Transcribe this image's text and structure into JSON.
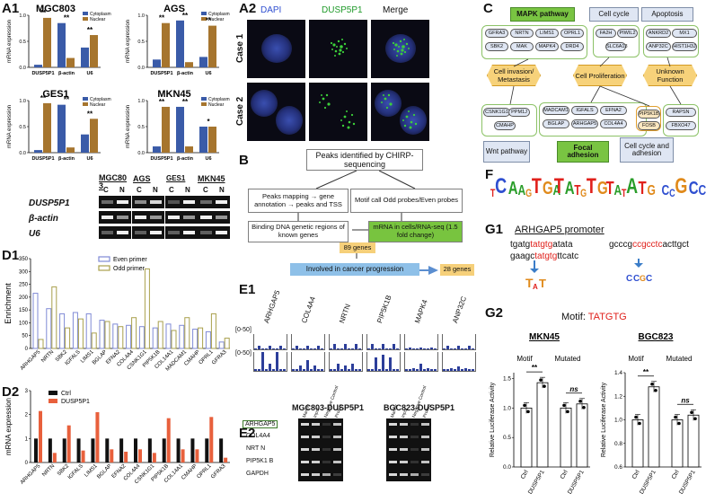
{
  "panels": {
    "A1": "A1",
    "A2": "A2",
    "B": "B",
    "C": "C",
    "D1": "D1",
    "D2": "D2",
    "E1": "E1",
    "E2": "E2",
    "F": "F",
    "G1": "G1",
    "G2": "G2"
  },
  "a1": {
    "legend": [
      "Cytoplasm",
      "Nuclear"
    ],
    "ylabel": "mRNA expression",
    "charts": [
      {
        "title": "MGC803",
        "genes": [
          "DUSP5P1",
          "β-actin",
          "U6"
        ],
        "cyto": [
          0.05,
          0.85,
          0.38
        ],
        "nuc": [
          0.95,
          0.18,
          0.62
        ],
        "sig": [
          "**",
          "**",
          "**"
        ],
        "yticks": [
          "0.0",
          "0.5",
          "1.0"
        ]
      },
      {
        "title": "AGS",
        "genes": [
          "DUSP5P1",
          "β-actin",
          "U6"
        ],
        "cyto": [
          0.15,
          0.9,
          0.2
        ],
        "nuc": [
          0.85,
          0.1,
          0.8
        ],
        "sig": [
          "**",
          "**",
          "**"
        ],
        "yticks": [
          "0.0",
          "0.5",
          "1.0"
        ]
      },
      {
        "title": "GES1",
        "genes": [
          "DUSP5P1",
          "β-actin",
          "U6"
        ],
        "cyto": [
          0.05,
          0.92,
          0.35
        ],
        "nuc": [
          0.95,
          0.1,
          0.65
        ],
        "sig": [
          "**",
          "**",
          "**"
        ],
        "yticks": [
          "0.0",
          "0.5",
          "1.0"
        ]
      },
      {
        "title": "MKN45",
        "genes": [
          "DUSP5P1",
          "β-actin",
          "U6"
        ],
        "cyto": [
          0.12,
          0.88,
          0.5
        ],
        "nuc": [
          0.88,
          0.12,
          0.5
        ],
        "sig": [
          "**",
          "**",
          "*"
        ],
        "yticks": [
          "0.0",
          "0.5",
          "1.0"
        ]
      }
    ],
    "gel": {
      "cells": [
        "MGC80 3",
        "AGS",
        "GES1",
        "MKN45"
      ],
      "lanes": [
        "C",
        "N"
      ],
      "rows": [
        "DUSP5P1",
        "β-actin",
        "U6"
      ]
    }
  },
  "a2": {
    "cols": [
      "DAPI",
      "DUSP5P1",
      "Merge"
    ],
    "rows": [
      "Case 1",
      "Case 2"
    ]
  },
  "b": {
    "top": "Peaks identified by CHIRP-sequencing",
    "left1": "Peaks mapping → gene annotation → peaks and TSS",
    "right1": "Motif call Odd probes/Even probes",
    "left2": "Binding DNA genetic regions of known genes",
    "right2": "mRNA in cells/RNA-seq (1.5 fold change)",
    "n1": "89 genes",
    "mid": "Involved in cancer progression",
    "n2": "28 genes"
  },
  "c": {
    "mapk": "MAPK pathway",
    "cellcycle": "Cell cycle",
    "apoptosis": "Apoptosis",
    "mapk_genes": [
      "GFRA3",
      "NRTN",
      "LIMS1",
      "OPRL1",
      "SBK2",
      "MAK",
      "MAPK4",
      "DRD4"
    ],
    "cc_genes": [
      "FA2H",
      "PIWIL2",
      "SLC6A13"
    ],
    "ap_genes": [
      "ANKRD2",
      "MX1",
      "ANP32C",
      "HIST1H3J"
    ],
    "invasion": "Cell invasion/ Metastasis",
    "prolif": "Cell Proliferation",
    "unknown": "Unknown Function",
    "wnt_genes": [
      "CSNK1G1",
      "PPM1J",
      "CMAHP"
    ],
    "focal_genes": [
      "MADCAM1",
      "IGFALS",
      "EFNA2",
      "BGLAP",
      "ARHGAP5",
      "COL4A4"
    ],
    "ccadh_genes": [
      "PIP5K1B",
      "FOSB"
    ],
    "unk_genes": [
      "RAPSN",
      "FBXO47"
    ],
    "wnt": "Wnt pathway",
    "focal": "Focal adhesion",
    "ccadh": "Cell cycle and adhesion"
  },
  "d1": {
    "ylabel": "Enrichment",
    "legend": [
      "Even primer",
      "Odd primer"
    ],
    "genes": [
      "ARHGAP5",
      "NRTN",
      "SBK2",
      "IGFALS",
      "LIMS1",
      "BGLAP",
      "EFNA2",
      "COL4A4",
      "CSNK1G1",
      "PIP5K1B",
      "COL14A1",
      "MADCAM1",
      "CMAHP",
      "OPRL1",
      "GFRA3"
    ],
    "even": [
      215,
      155,
      135,
      140,
      135,
      110,
      95,
      90,
      85,
      80,
      95,
      90,
      75,
      65,
      25
    ],
    "odd": [
      35,
      240,
      80,
      115,
      60,
      105,
      85,
      120,
      310,
      105,
      70,
      120,
      80,
      135,
      40
    ],
    "yticks": [
      "0",
      "50",
      "100",
      "150",
      "200",
      "250",
      "300",
      "350"
    ]
  },
  "d2": {
    "ylabel": "mRNA expression",
    "legend": [
      "Ctrl",
      "DUSP5P1"
    ],
    "genes": [
      "ARHGAP5",
      "NRTN",
      "SBK2",
      "IGFALS",
      "LIMS1",
      "BGLAP",
      "EFNA2",
      "COL4A4",
      "CSNK1G1",
      "PIP5K1B",
      "COL14A1",
      "CMAHP",
      "OPRL1",
      "GFRA3"
    ],
    "ctrl": [
      1,
      1,
      1,
      1,
      1,
      1,
      1,
      1,
      1,
      1,
      1,
      1,
      1,
      1
    ],
    "dusp": [
      2.15,
      0.4,
      1.55,
      0.5,
      2.1,
      0.55,
      0.45,
      0.55,
      0.4,
      1.85,
      0.55,
      0.55,
      1.9,
      0.2
    ],
    "yticks": [
      "0",
      "1",
      "2",
      "3"
    ]
  },
  "e1": {
    "genes": [
      "ARHGAP5",
      "COL4A4",
      "NRTN",
      "PIP5K1B",
      "MAPK4",
      "ANP32C"
    ],
    "range": "[0-50]"
  },
  "e2": {
    "titles": [
      "MGC803-DUSP5P1",
      "BGC823-DUSP5P1"
    ],
    "rows": [
      "ARHGAP5",
      "COL4A4",
      "NRT N",
      "PIP5K1 B",
      "GAPDH"
    ],
    "lanes": [
      "Marker",
      "Input",
      "Negative Control",
      "Probes"
    ]
  },
  "f": {
    "logos": [
      "TCAAGTGA",
      "TATGTG",
      "TATATG",
      "CCGCCTC"
    ]
  },
  "g1": {
    "title": "ARHGAP5 promoter",
    "seq1_pre": "tgatg",
    "seq1_motif": "tatgtg",
    "seq1_post": "atata",
    "seq2_pre": "gaagc",
    "seq2_motif": "tatgtg",
    "seq2_post": "ttcatc",
    "seq3_pre": "gcccg",
    "seq3_motif": "ccgcctc",
    "seq3_post": "acttgct"
  },
  "g2": {
    "motif_label": "Motif:",
    "motif": "TATGTG",
    "charts": [
      {
        "title": "MKN45",
        "groups": [
          "Motif",
          "Mutated"
        ],
        "cats": [
          "Ctrl",
          "DUSP5P1"
        ],
        "motif": [
          1.0,
          1.43
        ],
        "mutated": [
          1.0,
          1.07
        ],
        "sig": [
          "**",
          "ns"
        ],
        "yticks": [
          "0.0",
          "0.5",
          "1.0",
          "1.5"
        ],
        "ylim": [
          0,
          1.6
        ]
      },
      {
        "title": "BGC823",
        "groups": [
          "Motif",
          "Mutated"
        ],
        "cats": [
          "Ctrl",
          "DUSP5P1"
        ],
        "motif": [
          1.0,
          1.28
        ],
        "mutated": [
          1.0,
          1.04
        ],
        "sig": [
          "**",
          "ns"
        ],
        "yticks": [
          "0.6",
          "0.8",
          "1.0",
          "1.2",
          "1.4"
        ],
        "ylim": [
          0.6,
          1.4
        ]
      }
    ],
    "ylabel": "Relative Luciferase Activity"
  },
  "colors": {
    "cyto": "#3a5ba8",
    "nuc": "#a6752e",
    "even": "#7f8ad6",
    "odd": "#a9a04c",
    "ctrl": "#111111",
    "dusp": "#e8603c",
    "motif_red": "#e0201b"
  }
}
